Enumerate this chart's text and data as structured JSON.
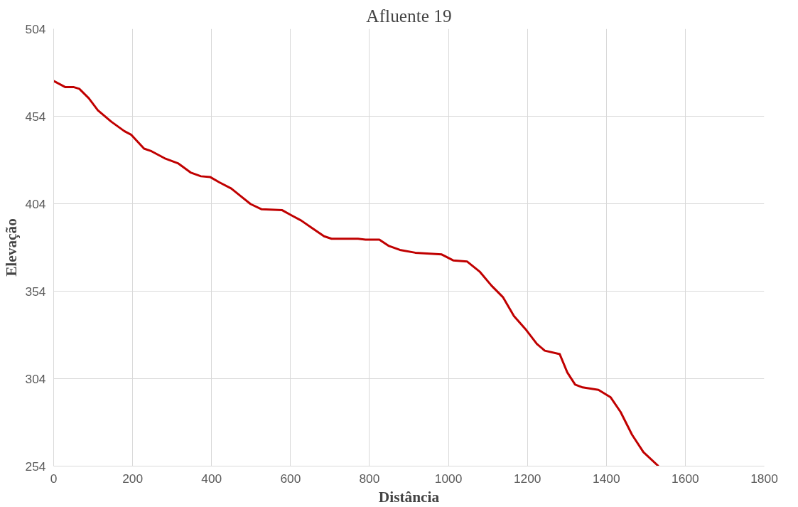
{
  "chart_data": {
    "type": "line",
    "title": "Afluente 19",
    "xlabel": "Distância",
    "ylabel": "Elevação",
    "x": [
      0,
      29,
      50,
      65,
      89,
      112,
      146,
      179,
      196,
      229,
      248,
      281,
      316,
      348,
      373,
      397,
      420,
      450,
      474,
      499,
      527,
      579,
      603,
      627,
      656,
      685,
      704,
      771,
      790,
      825,
      848,
      877,
      916,
      983,
      1012,
      1047,
      1080,
      1109,
      1138,
      1166,
      1195,
      1224,
      1244,
      1282,
      1301,
      1321,
      1340,
      1380,
      1411,
      1436,
      1465,
      1494,
      1532
    ],
    "series": [
      {
        "color": "#c00000",
        "values": [
          474.2,
          470.7,
          470.7,
          469.7,
          464.3,
          457.4,
          450.9,
          445.5,
          443.5,
          435.5,
          434,
          430,
          427,
          421.7,
          419.7,
          419.2,
          416.2,
          412.7,
          408.3,
          403.8,
          400.8,
          400.3,
          397.3,
          394.4,
          389.9,
          385.4,
          384,
          384,
          383.5,
          383.5,
          380,
          377.6,
          376,
          375,
          371.6,
          371,
          365,
          357.2,
          350.6,
          339.8,
          332.4,
          323.9,
          320,
          318,
          307.6,
          300.6,
          299,
          297.6,
          293.3,
          285,
          272,
          262,
          254
        ]
      }
    ],
    "xlim": [
      0,
      1800
    ],
    "xticks": [
      0,
      200,
      400,
      600,
      800,
      1000,
      1200,
      1400,
      1600,
      1800
    ],
    "ylim": [
      254,
      504
    ],
    "yticks": [
      254,
      304,
      354,
      404,
      454,
      504
    ],
    "grid": true,
    "marker": "none",
    "line_style": "solid"
  }
}
